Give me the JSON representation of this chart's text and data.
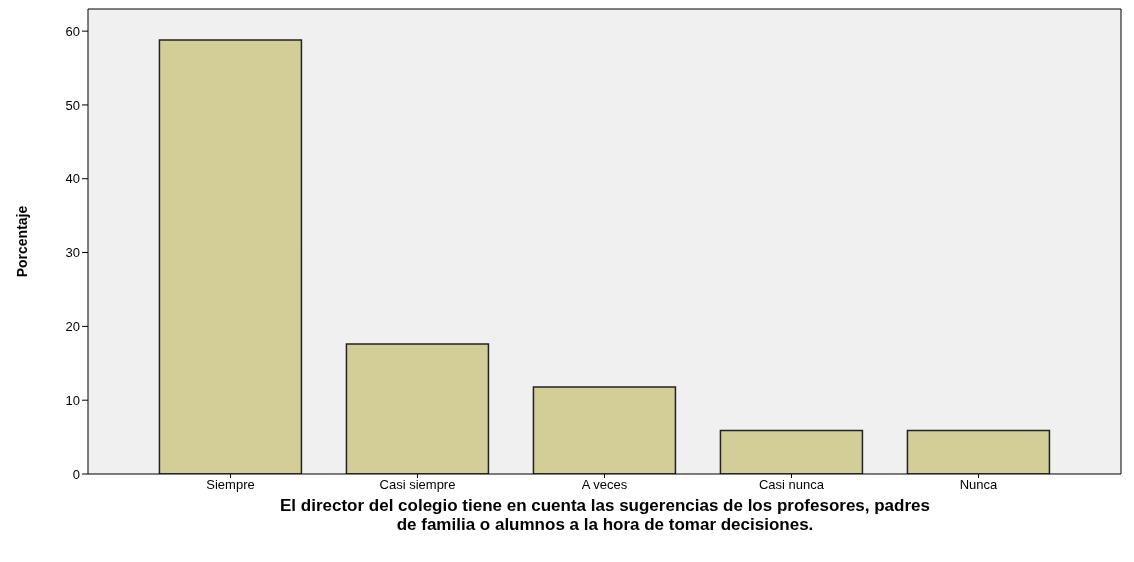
{
  "chart_data": {
    "type": "bar",
    "xlabel": "El director del colegio tiene en cuenta las sugerencias de los profesores, padres de familia o alumnos a la hora de tomar decisiones.",
    "ylabel": "Porcentaje",
    "categories": [
      "Siempre",
      "Casi siempre",
      "A veces",
      "Casi nunca",
      "Nunca"
    ],
    "values": [
      58.8,
      17.6,
      11.8,
      5.9,
      5.9
    ],
    "color": "#d3ce97",
    "ylim": [
      0,
      63
    ],
    "yticks": [
      0,
      10,
      20,
      30,
      40,
      50,
      60
    ],
    "grid": false
  }
}
